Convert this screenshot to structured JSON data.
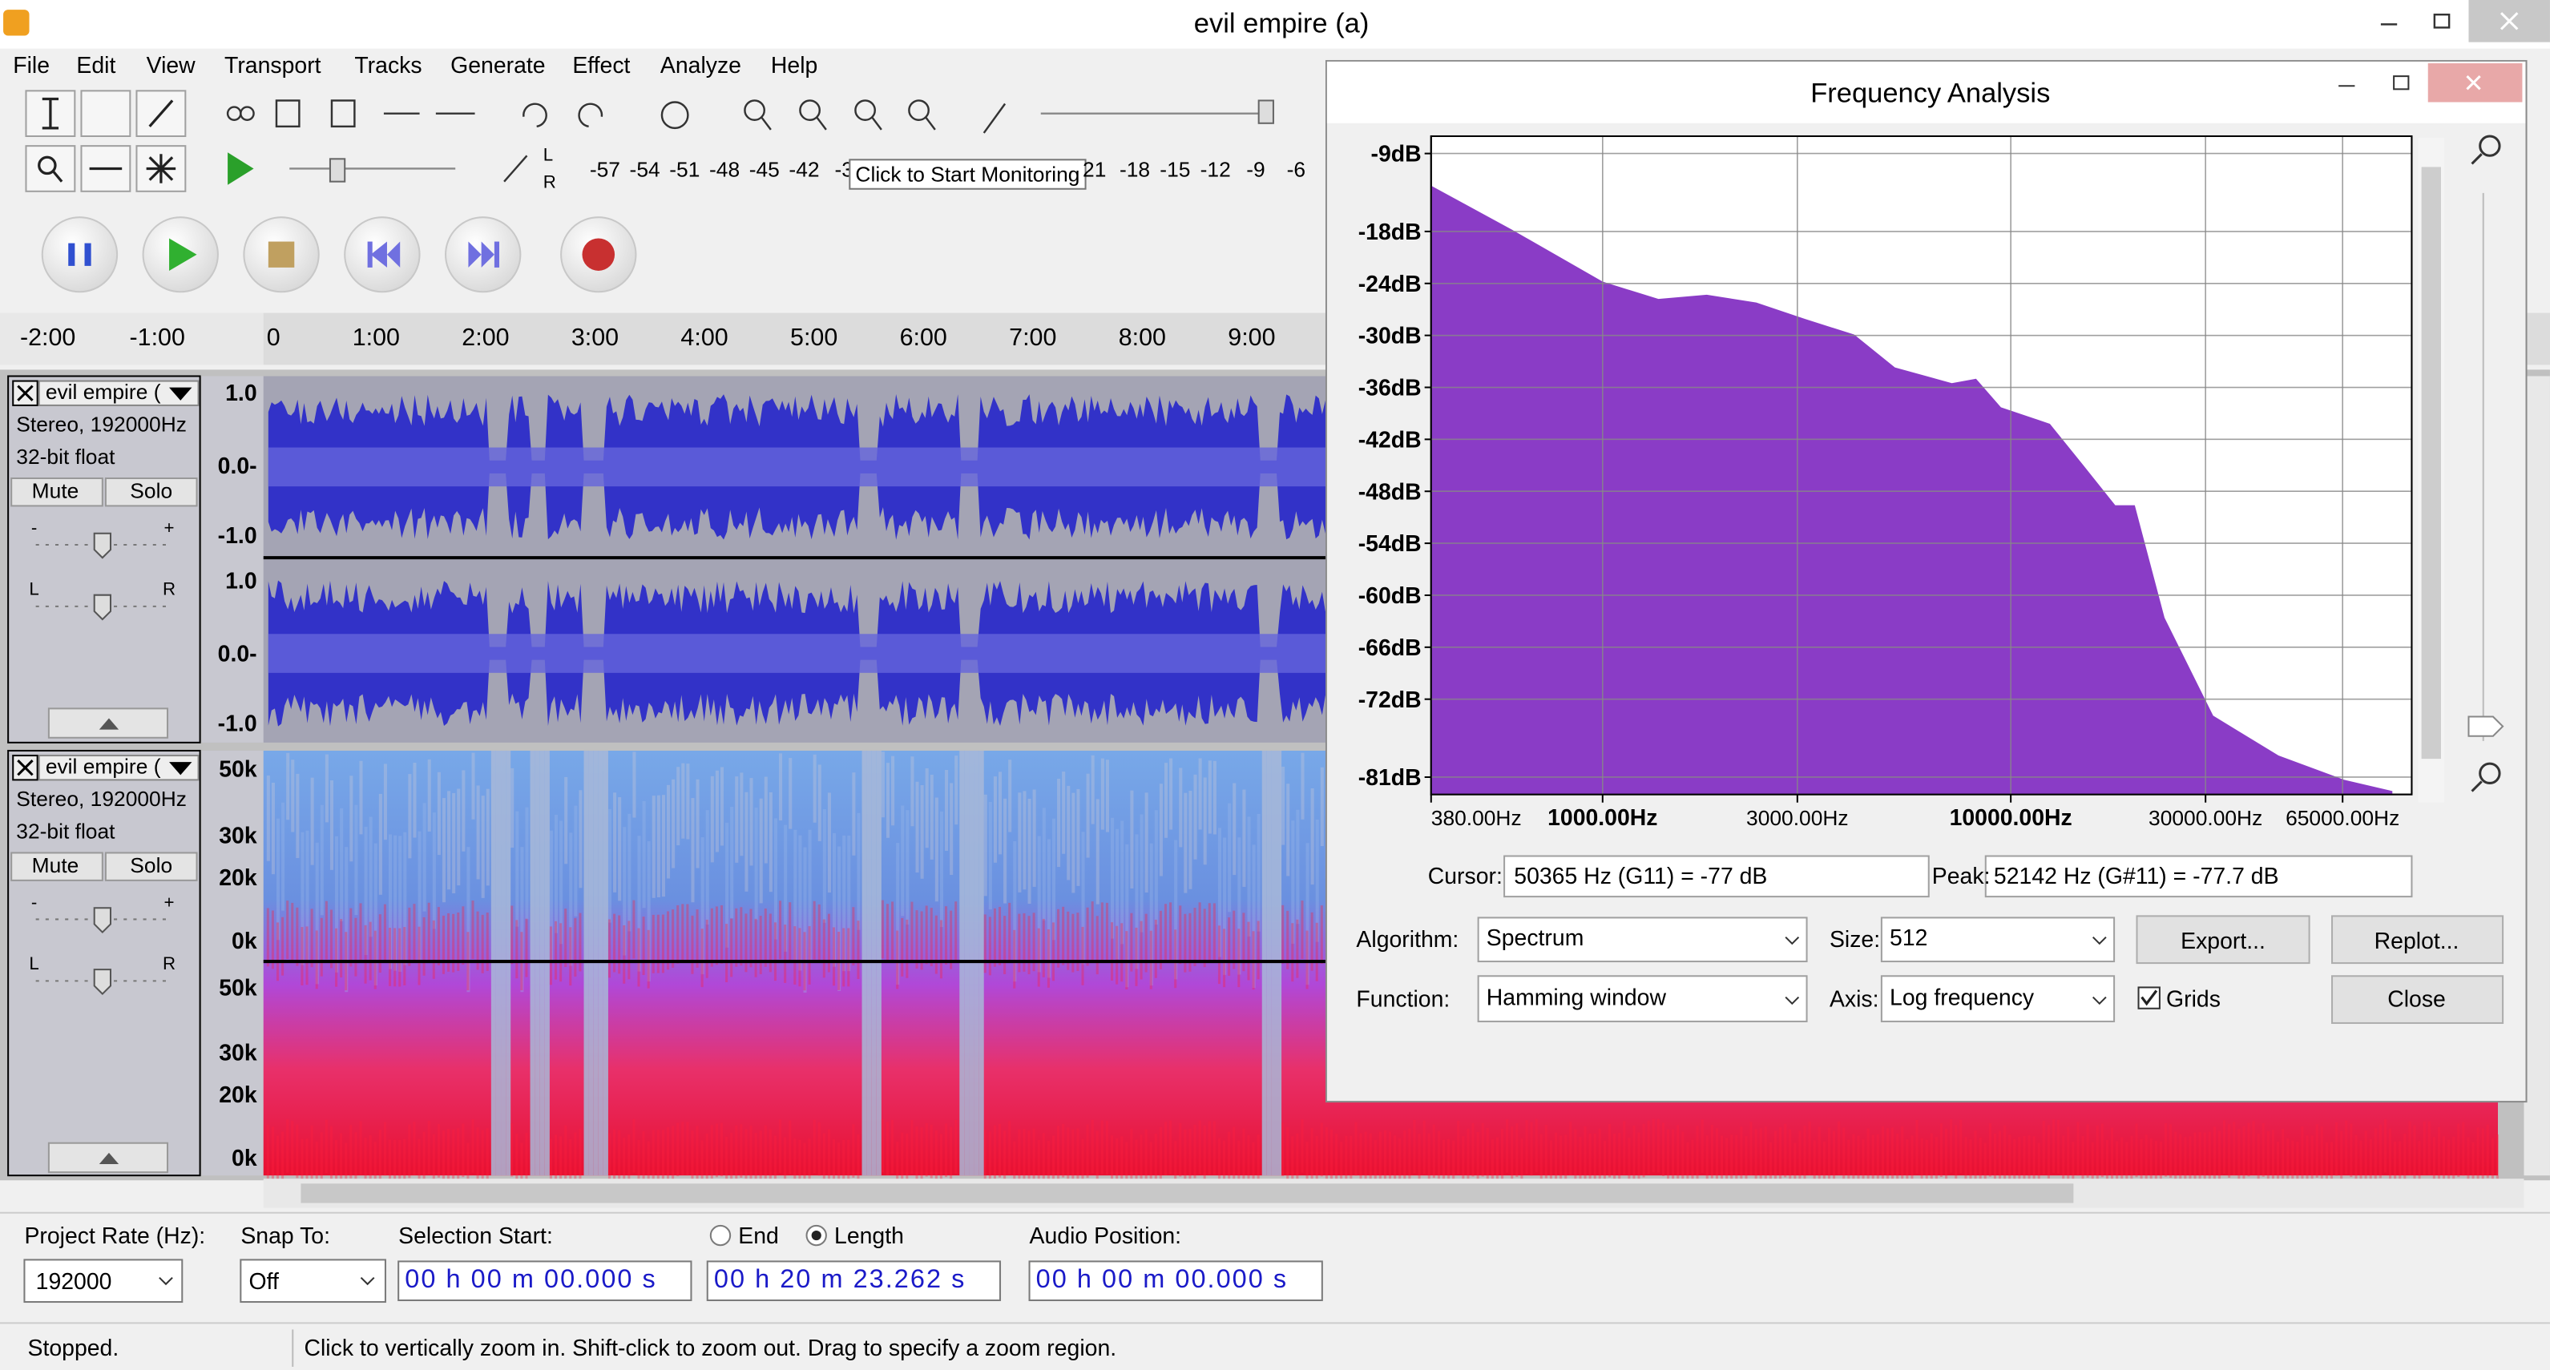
{
  "window": {
    "title": "evil empire (a)"
  },
  "menu": [
    "File",
    "Edit",
    "View",
    "Transport",
    "Tracks",
    "Generate",
    "Effect",
    "Analyze",
    "Help"
  ],
  "meter": {
    "channels": [
      "L",
      "R"
    ],
    "scale_left": [
      "-57",
      "-54",
      "-51",
      "-48",
      "-45",
      "-42",
      "-3"
    ],
    "tooltip": "Click to Start Monitoring",
    "scale_right": [
      "21",
      "-18",
      "-15",
      "-12",
      "-9",
      "-6"
    ]
  },
  "timeline": [
    "-2:00",
    "-1:00",
    "0",
    "1:00",
    "2:00",
    "3:00",
    "4:00",
    "5:00",
    "6:00",
    "7:00",
    "8:00",
    "9:00"
  ],
  "tracks": [
    {
      "name": "evil empire (",
      "info": [
        "Stereo, 192000Hz",
        "32-bit float"
      ],
      "mute": "Mute",
      "solo": "Solo",
      "gain": [
        "-",
        "+"
      ],
      "pan": [
        "L",
        "R"
      ],
      "scale": [
        "1.0",
        "0.0-",
        "-1.0",
        "1.0",
        "0.0-",
        "-1.0"
      ]
    },
    {
      "name": "evil empire (",
      "info": [
        "Stereo, 192000Hz",
        "32-bit float"
      ],
      "mute": "Mute",
      "solo": "Solo",
      "gain": [
        "-",
        "+"
      ],
      "pan": [
        "L",
        "R"
      ],
      "scale": [
        "50k",
        "30k",
        "20k",
        "0k",
        "50k",
        "30k",
        "20k",
        "0k"
      ]
    }
  ],
  "selection_toolbar": {
    "project_rate_label": "Project Rate (Hz):",
    "project_rate": "192000",
    "snap_label": "Snap To:",
    "snap": "Off",
    "selection_start_label": "Selection Start:",
    "end": "End",
    "length": "Length",
    "start_time": "00 h 00 m 00.000 s",
    "length_time": "00 h 20 m 23.262 s",
    "audio_position_label": "Audio Position:",
    "audio_position": "00 h 00 m 00.000 s"
  },
  "status": {
    "state": "Stopped.",
    "hint": "Click to vertically zoom in. Shift-click to zoom out. Drag to specify a zoom region."
  },
  "frequency_analysis": {
    "title": "Frequency Analysis",
    "cursor_label": "Cursor:",
    "cursor": "50365 Hz (G11) = -77 dB",
    "peak_label": "Peak:",
    "peak": "52142 Hz (G#11) = -77.7 dB",
    "algorithm_label": "Algorithm:",
    "algorithm": "Spectrum",
    "size_label": "Size:",
    "size": "512",
    "function_label": "Function:",
    "function": "Hamming window",
    "axis_label": "Axis:",
    "axis": "Log frequency",
    "grids": "Grids",
    "export": "Export...",
    "replot": "Replot...",
    "close": "Close"
  },
  "chart_data": {
    "type": "area",
    "color": "#8a3cc6",
    "log_x": true,
    "grid": true,
    "x": [
      380,
      600,
      1000,
      1370,
      1800,
      2380,
      3130,
      4130,
      5200,
      7170,
      8220,
      9460,
      12470,
      15000,
      18030,
      20130,
      23800,
      31330,
      45290,
      65460,
      86100
    ],
    "values": [
      -12.7,
      -17.8,
      -23.8,
      -25.8,
      -25.3,
      -26.2,
      -28.1,
      -29.9,
      -33.7,
      -35.5,
      -35,
      -38.3,
      -40.2,
      -44.9,
      -49.6,
      -49.6,
      -62.6,
      -73.9,
      -78.5,
      -81.3,
      -82.6
    ],
    "xlim": [
      380,
      96000
    ],
    "ylim": [
      -83,
      -7
    ],
    "xticks": [
      {
        "value": 380,
        "label": "380.00Hz"
      },
      {
        "value": 1000,
        "label": "1000.00Hz"
      },
      {
        "value": 3000,
        "label": "3000.00Hz"
      },
      {
        "value": 10000,
        "label": "10000.00Hz"
      },
      {
        "value": 30000,
        "label": "30000.00Hz"
      },
      {
        "value": 65000,
        "label": "65000.00Hz"
      }
    ],
    "yticks": [
      {
        "value": -9,
        "label": "-9dB"
      },
      {
        "value": -18,
        "label": "-18dB"
      },
      {
        "value": -24,
        "label": "-24dB"
      },
      {
        "value": -30,
        "label": "-30dB"
      },
      {
        "value": -36,
        "label": "-36dB"
      },
      {
        "value": -42,
        "label": "-42dB"
      },
      {
        "value": -48,
        "label": "-48dB"
      },
      {
        "value": -54,
        "label": "-54dB"
      },
      {
        "value": -60,
        "label": "-60dB"
      },
      {
        "value": -66,
        "label": "-66dB"
      },
      {
        "value": -72,
        "label": "-72dB"
      },
      {
        "value": -81,
        "label": "-81dB"
      }
    ]
  }
}
